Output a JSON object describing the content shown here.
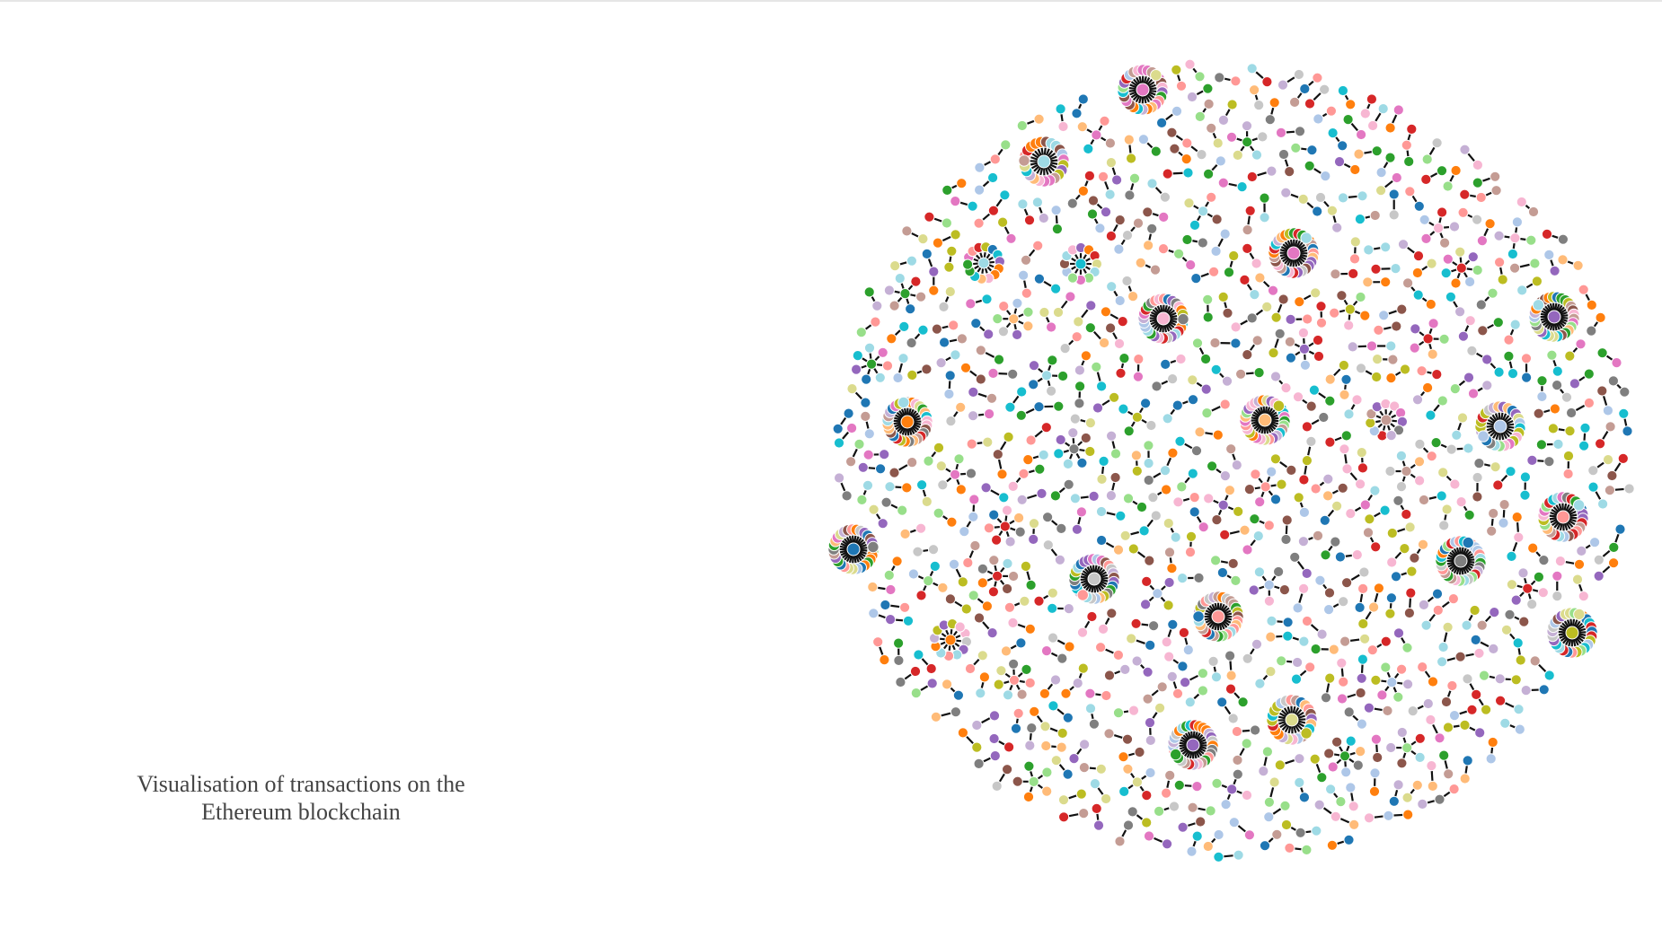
{
  "caption": {
    "line1": "Visualisation of transactions on the",
    "line2": "Ethereum blockchain"
  },
  "network": {
    "description_type": "force-directed transaction graph",
    "palette": [
      "#1f77b4",
      "#aec7e8",
      "#ff7f0e",
      "#ffbb78",
      "#2ca02c",
      "#98df8a",
      "#d62728",
      "#ff9896",
      "#9467bd",
      "#c5b0d5",
      "#8c564b",
      "#c49c94",
      "#e377c2",
      "#f7b6d2",
      "#7f7f7f",
      "#c7c7c7",
      "#bcbd22",
      "#dbdb8d",
      "#17becf",
      "#9edae5"
    ],
    "edge_color": "#111111",
    "hub_count": 20,
    "star_count": 32,
    "pair_count": 620
  }
}
